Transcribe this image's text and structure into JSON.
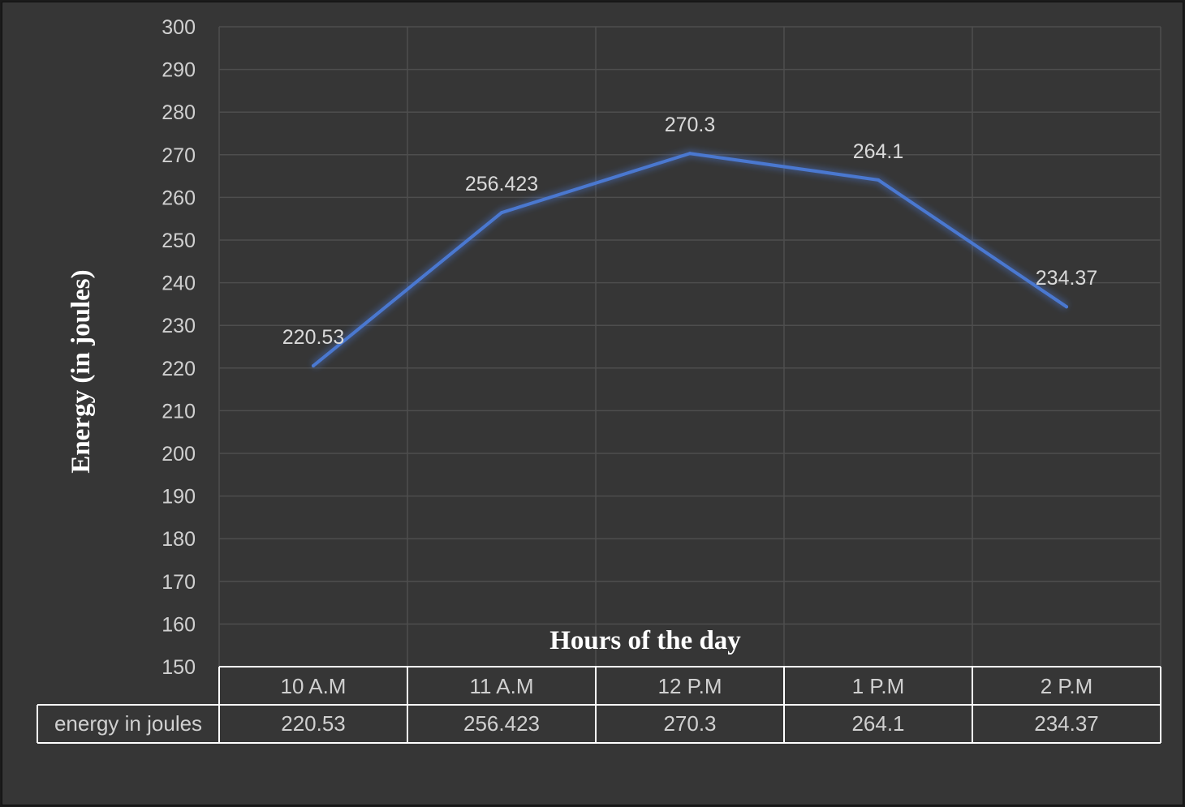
{
  "chart_data": {
    "type": "line",
    "title": "",
    "xlabel": "Hours of the day",
    "ylabel": "Energy (in joules)",
    "categories": [
      "10 A.M",
      "11 A.M",
      "12 P.M",
      "1 P.M",
      "2 P.M"
    ],
    "series": [
      {
        "name": "energy in joules",
        "values": [
          220.53,
          256.423,
          270.3,
          264.1,
          234.37
        ],
        "labels": [
          "220.53",
          "256.423",
          "270.3",
          "264.1",
          "234.37"
        ]
      }
    ],
    "ylim": [
      150,
      300
    ],
    "yticks": [
      "150",
      "160",
      "170",
      "180",
      "190",
      "200",
      "210",
      "220",
      "230",
      "240",
      "250",
      "260",
      "270",
      "280",
      "290",
      "300"
    ],
    "grid": true,
    "data_table": true,
    "colors": {
      "line": "#4a78d0",
      "background": "#363636",
      "grid": "#4e4e4e",
      "table_border": "#ffffff"
    }
  }
}
